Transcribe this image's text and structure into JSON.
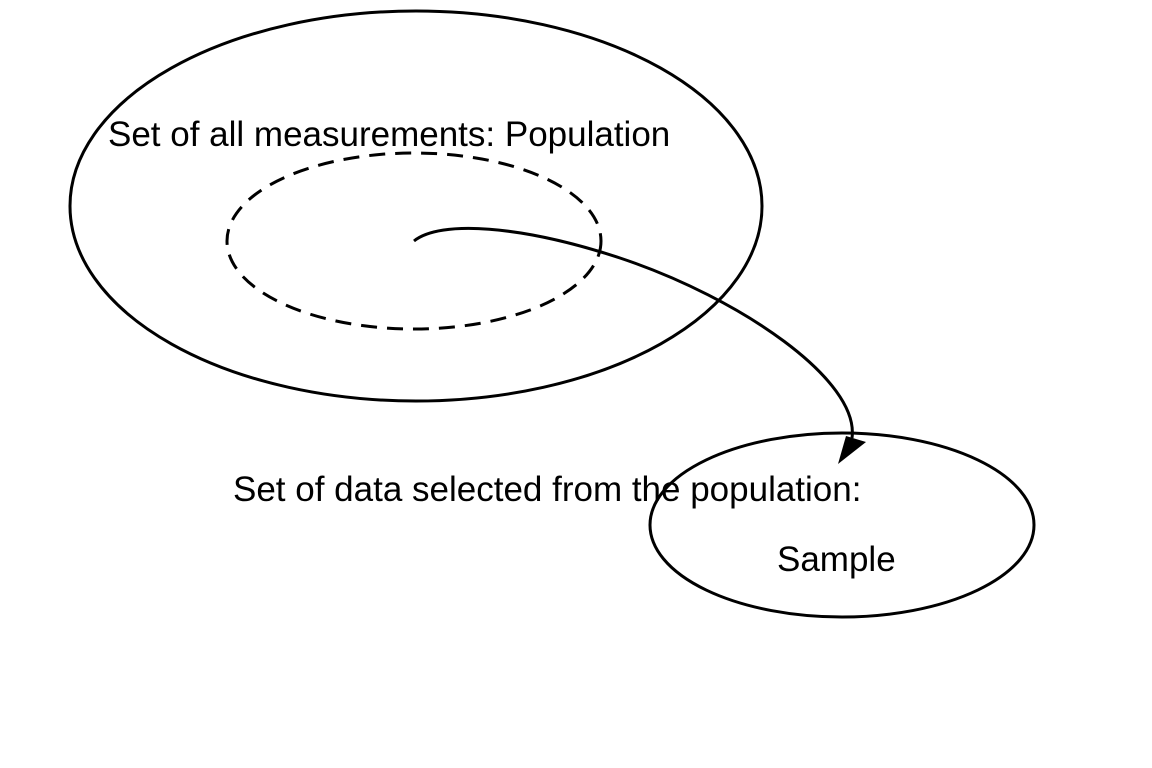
{
  "population": {
    "label": "Set of all measurements: Population"
  },
  "sample": {
    "description": "Set of data selected from the population:",
    "label": "Sample"
  },
  "colors": {
    "ink": "#000000",
    "background": "#ffffff"
  }
}
